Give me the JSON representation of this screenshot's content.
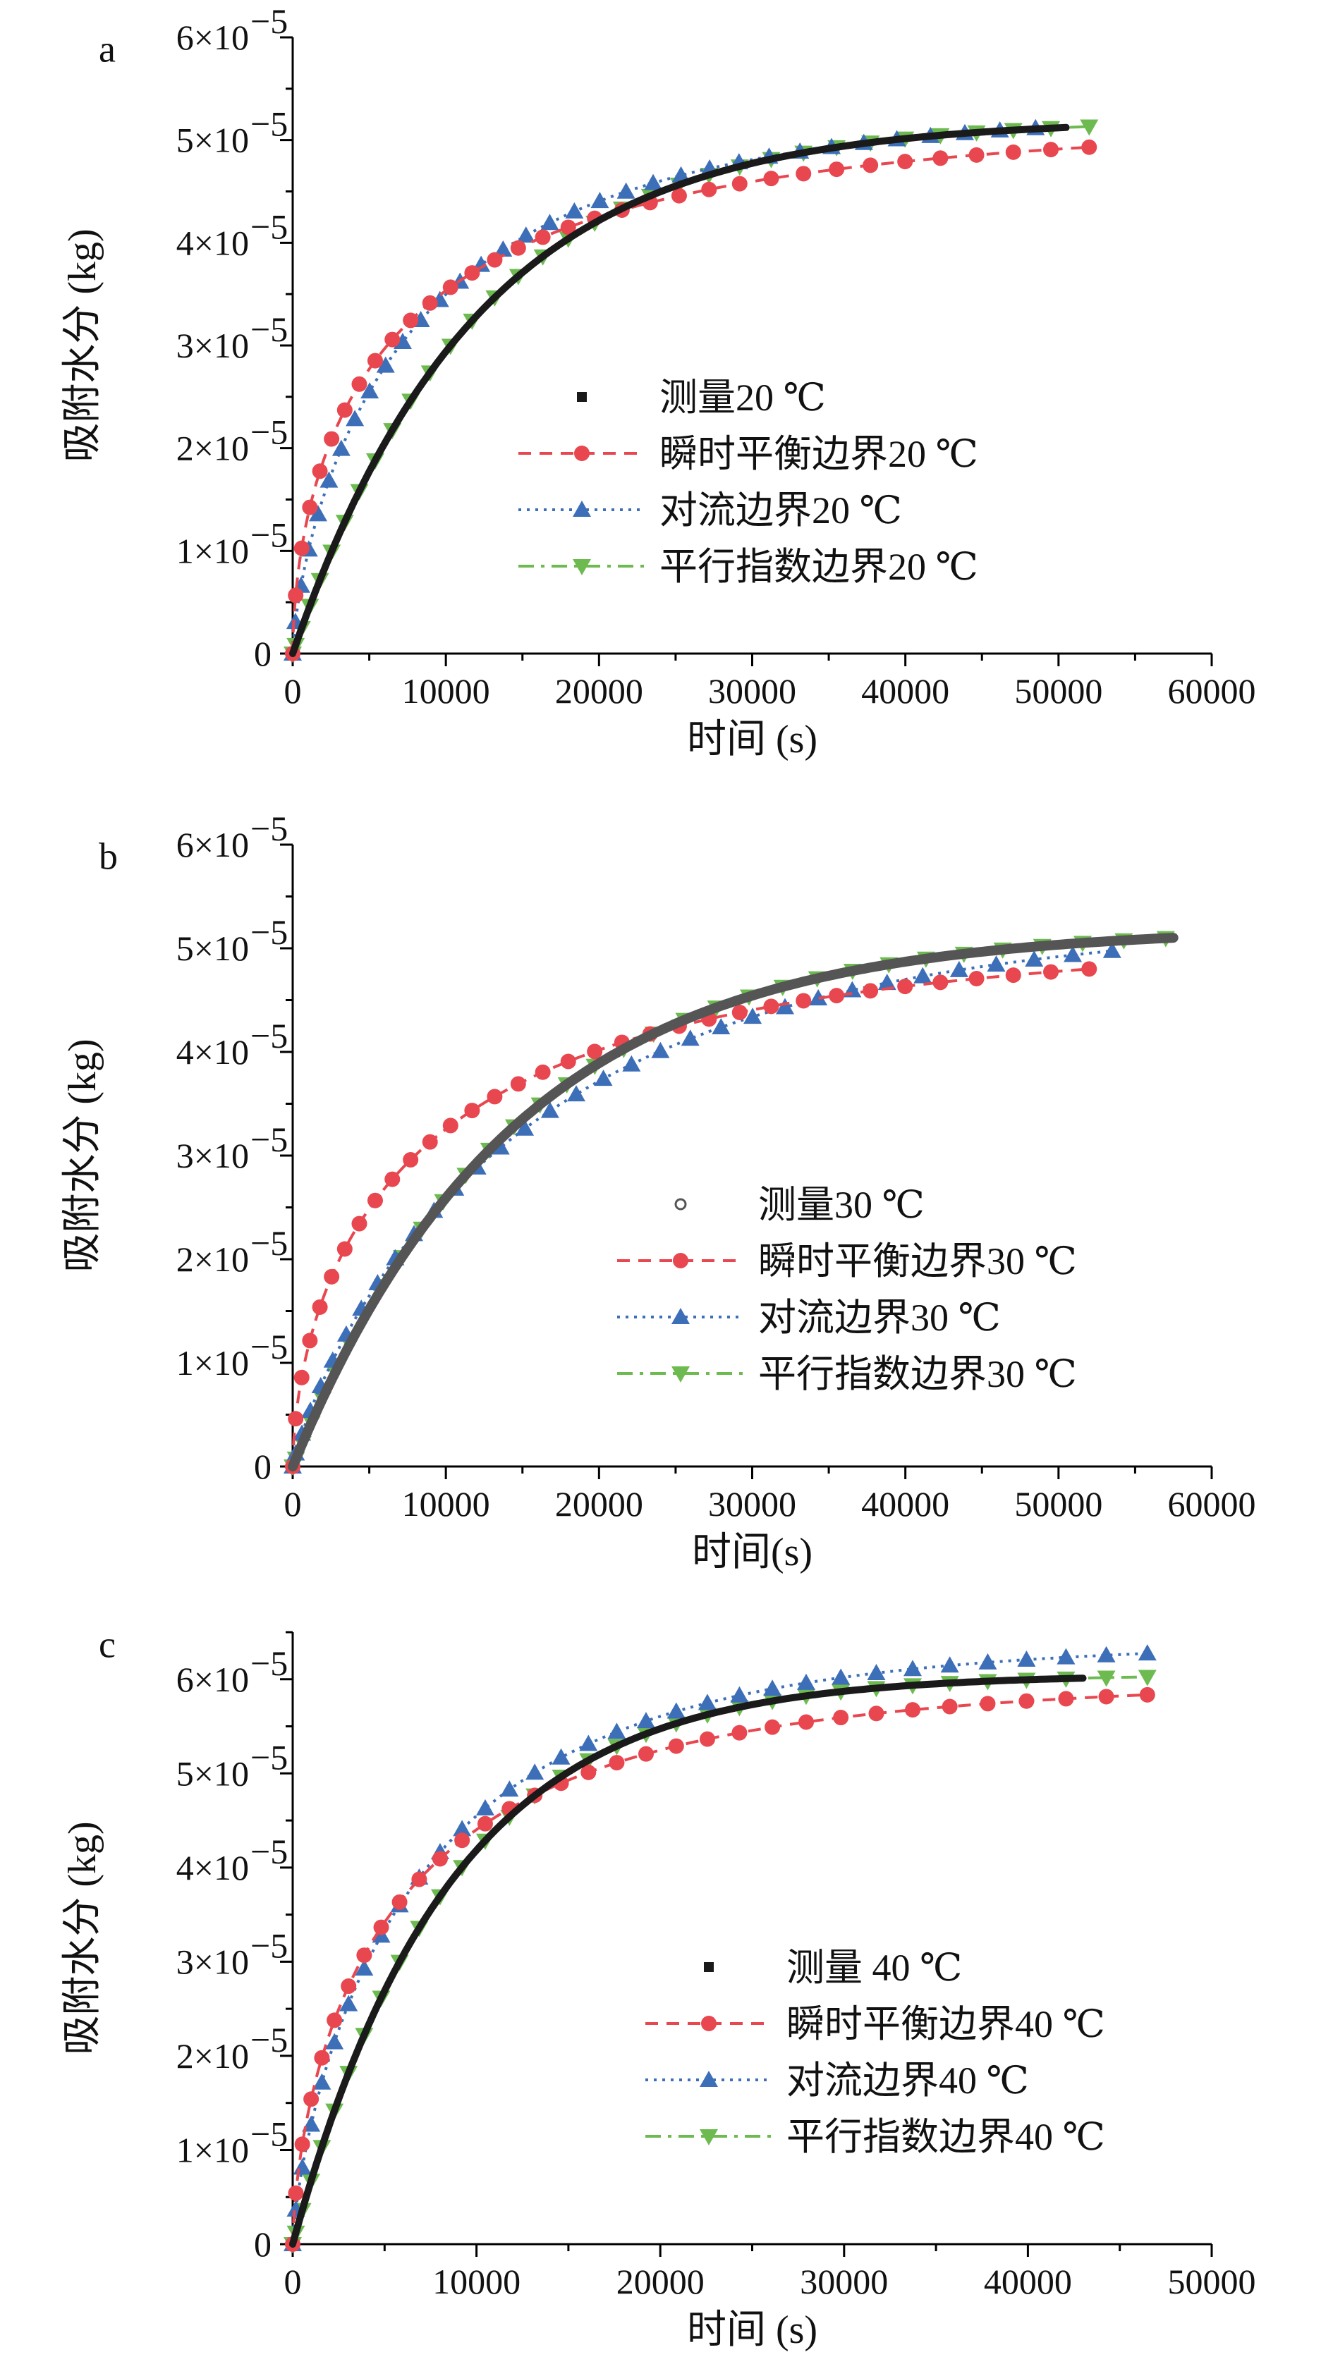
{
  "colors": {
    "measured": "#1a1a1a",
    "measured_b": "#555555",
    "instant": "#e8474f",
    "convective": "#3d6fb8",
    "parallel": "#6dbb50"
  },
  "chart_data": [
    {
      "type": "line",
      "panel": "a",
      "xlabel": "时间 (s)",
      "ylabel": "吸附水分 (kg)",
      "xlim": [
        0,
        60000
      ],
      "xticks": [
        0,
        10000,
        20000,
        30000,
        40000,
        50000,
        60000
      ],
      "xtick_labels": [
        "0",
        "10000",
        "20000",
        "30000",
        "40000",
        "50000",
        "60000"
      ],
      "ylim": [
        0,
        6e-05
      ],
      "ytick_labels": [
        "0",
        "1×10",
        "2×10",
        "3×10",
        "4×10",
        "5×10",
        "6×10"
      ],
      "ytick_exponent": "−5",
      "legend_position": "center-right",
      "series": [
        {
          "name": "测量20 ℃",
          "style": "measured",
          "x_max": 50500,
          "eq": 5.2e-05,
          "tau": 12000
        },
        {
          "name": "瞬时平衡边界20 ℃",
          "style": "instant",
          "marker": "circle",
          "x_max": 52000,
          "eq": 5.2e-05,
          "beta": 0.58,
          "tau": 8000
        },
        {
          "name": "对流边界20 ℃",
          "style": "convective",
          "marker": "triangle-up",
          "x_max": 48500,
          "eq": 5.3e-05,
          "beta": 0.72,
          "tau": 9000
        },
        {
          "name": "平行指数边界20 ℃",
          "style": "parallel",
          "marker": "triangle-down",
          "x_max": 52000,
          "eq": 5.2e-05,
          "tau": 12000
        }
      ]
    },
    {
      "type": "line",
      "panel": "b",
      "xlabel": "时间(s)",
      "ylabel": "吸附水分 (kg)",
      "xlim": [
        0,
        60000
      ],
      "xticks": [
        0,
        10000,
        20000,
        30000,
        40000,
        50000,
        60000
      ],
      "xtick_labels": [
        "0",
        "10000",
        "20000",
        "30000",
        "40000",
        "50000",
        "60000"
      ],
      "ylim": [
        0,
        6e-05
      ],
      "ytick_labels": [
        "0",
        "1×10",
        "2×10",
        "3×10",
        "4×10",
        "5×10",
        "6×10"
      ],
      "ytick_exponent": "−5",
      "legend_position": "center-right",
      "series": [
        {
          "name": "测量30 ℃",
          "style": "measured",
          "x_max": 57500,
          "eq": 5.2e-05,
          "tau": 14500
        },
        {
          "name": "瞬时平衡边界30 ℃",
          "style": "instant",
          "marker": "circle",
          "x_max": 52000,
          "eq": 5.15e-05,
          "beta": 0.6,
          "tau": 10000
        },
        {
          "name": "对流边界30 ℃",
          "style": "convective",
          "marker": "triangle-up",
          "x_max": 53500,
          "eq": 5.3e-05,
          "beta": 0.85,
          "tau": 16000
        },
        {
          "name": "平行指数边界30 ℃",
          "style": "parallel",
          "marker": "triangle-down",
          "x_max": 57000,
          "eq": 5.2e-05,
          "tau": 14500
        }
      ]
    },
    {
      "type": "line",
      "panel": "c",
      "xlabel": "时间 (s)",
      "ylabel": "吸附水分 (kg)",
      "xlim": [
        0,
        50000
      ],
      "xticks": [
        0,
        10000,
        20000,
        30000,
        40000,
        50000
      ],
      "xtick_labels": [
        "0",
        "10000",
        "20000",
        "30000",
        "40000",
        "50000"
      ],
      "ylim": [
        0,
        6.5e-05
      ],
      "ytick_labels": [
        "0",
        "1×10",
        "2×10",
        "3×10",
        "4×10",
        "5×10",
        "6×10"
      ],
      "ytick_exponent": "−5",
      "legend_position": "center-right",
      "series": [
        {
          "name": "测量 40 ℃",
          "style": "measured",
          "x_max": 43000,
          "eq": 6.05e-05,
          "tau": 8500
        },
        {
          "name": "瞬时平衡边界40 ℃",
          "style": "instant",
          "marker": "circle",
          "x_max": 46500,
          "eq": 6e-05,
          "beta": 0.65,
          "tau": 6500
        },
        {
          "name": "对流边界40 ℃",
          "style": "convective",
          "marker": "triangle-up",
          "x_max": 46500,
          "eq": 6.4e-05,
          "beta": 0.75,
          "tau": 7500
        },
        {
          "name": "平行指数边界40 ℃",
          "style": "parallel",
          "marker": "triangle-down",
          "x_max": 46500,
          "eq": 6.05e-05,
          "tau": 8500
        }
      ]
    }
  ]
}
